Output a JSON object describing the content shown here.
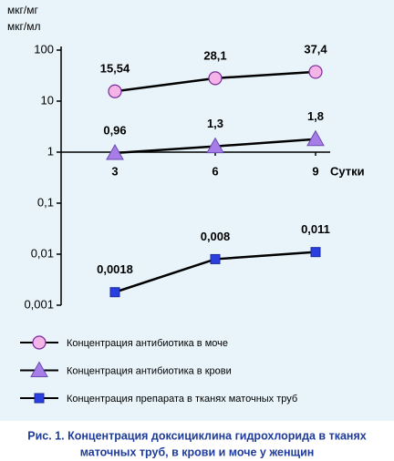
{
  "chart_data": {
    "type": "line",
    "log_scale": true,
    "y_label": [
      "мкг/мг",
      "мкг/мл"
    ],
    "x_label": "Сутки",
    "categories": [
      "3",
      "6",
      "9"
    ],
    "ylim": [
      0.001,
      100
    ],
    "yticks": [
      {
        "value": 0.001,
        "label": "0,001"
      },
      {
        "value": 0.01,
        "label": "0,01"
      },
      {
        "value": 0.1,
        "label": "0,1"
      },
      1,
      10,
      100
    ],
    "xaxis_crosses": 1,
    "line_color": "#000000",
    "series": [
      {
        "name": "Концентрация антибиотика в моче",
        "color": "#f4b4e8",
        "marker": "circle",
        "values": [
          15.54,
          28.1,
          37.4
        ],
        "value_labels": [
          "15,54",
          "28,1",
          "37,4"
        ]
      },
      {
        "name": "Концентрация антибиотика в крови",
        "color": "#a77ee8",
        "marker": "triangle",
        "values": [
          0.96,
          1.3,
          1.8
        ],
        "value_labels": [
          "0,96",
          "1,3",
          "1,8"
        ]
      },
      {
        "name": "Концентрация препарата в тканях маточных труб",
        "color": "#2a3fe0",
        "marker": "square",
        "values": [
          0.0018,
          0.008,
          0.011
        ],
        "value_labels": [
          "0,0018",
          "0,008",
          "0,011"
        ]
      }
    ],
    "caption": [
      "Рис. 1. Концентрация доксициклина гидрохлорида в тканях",
      "маточных труб, в крови и  моче у женщин"
    ]
  }
}
